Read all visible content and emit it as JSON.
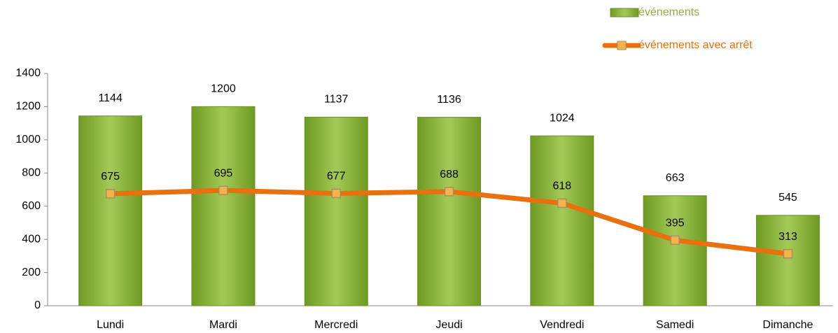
{
  "chart_data": {
    "type": "bar",
    "categories": [
      "Lundi",
      "Mardi",
      "Mercredi",
      "Jeudi",
      "Vendredi",
      "Samedi",
      "Dimanche"
    ],
    "series": [
      {
        "name": "événements",
        "type": "bar",
        "color": "#8db33a",
        "values": [
          1144,
          1200,
          1137,
          1136,
          1024,
          663,
          545
        ]
      },
      {
        "name": "événements avec arrêt",
        "type": "line",
        "color": "#e8700f",
        "values": [
          675,
          695,
          677,
          688,
          618,
          395,
          313
        ]
      }
    ],
    "ylim": [
      0,
      1400
    ],
    "yticks": [
      0,
      200,
      400,
      600,
      800,
      1000,
      1200,
      1400
    ],
    "legend": "top-right"
  }
}
